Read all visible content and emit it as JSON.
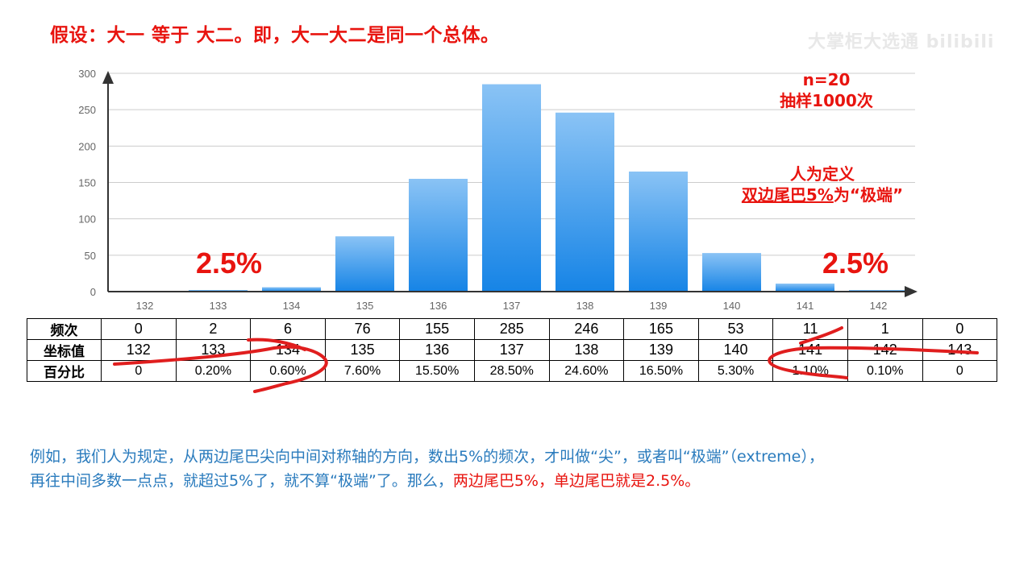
{
  "heading": "假设：大一 等于 大二。即，大一大二是同一个总体。",
  "watermark": "大掌柜大选通 bilibili",
  "annotations": {
    "n_line": "n=20",
    "sample_line": "抽样1000次",
    "define_line1": "人为定义",
    "define_line2_underlined": "双边尾巴5%",
    "define_line2_rest": "为“极端”",
    "left_pct": "2.5%",
    "right_pct": "2.5%"
  },
  "chart_data": {
    "type": "bar",
    "categories": [
      "132",
      "133",
      "134",
      "135",
      "136",
      "137",
      "138",
      "139",
      "140",
      "141",
      "142"
    ],
    "values": [
      0,
      2,
      6,
      76,
      155,
      285,
      246,
      165,
      53,
      11,
      1
    ],
    "yticks": [
      "0",
      "50",
      "100",
      "150",
      "200",
      "250",
      "300"
    ],
    "ylim": [
      0,
      300
    ],
    "grid": true,
    "colors": {
      "bar_top": "#8ac3f5",
      "bar_bottom": "#1684e6",
      "grid": "#cccccc",
      "axis": "#333333"
    }
  },
  "table": {
    "rows": [
      {
        "label": "频次",
        "cells": [
          "0",
          "2",
          "6",
          "76",
          "155",
          "285",
          "246",
          "165",
          "53",
          "11",
          "1",
          "0"
        ]
      },
      {
        "label": "坐标值",
        "cells": [
          "132",
          "133",
          "134",
          "135",
          "136",
          "137",
          "138",
          "139",
          "140",
          "141",
          "142",
          "143"
        ]
      },
      {
        "label": "百分比",
        "cells": [
          "0",
          "0.20%",
          "0.60%",
          "7.60%",
          "15.50%",
          "28.50%",
          "24.60%",
          "16.50%",
          "5.30%",
          "1.10%",
          "0.10%",
          "0"
        ]
      }
    ]
  },
  "note": {
    "line1": "例如，我们人为规定，从两边尾巴尖向中间对称轴的方向，数出5%的频次，才叫做“尖”，或者叫“极端”（extreme），",
    "line2_start": "再往中间多数一点点，就超过5%了，就不算“极端”了。那么，",
    "line2_red": "两边尾巴5%，单边尾巴就是2.5%。"
  }
}
